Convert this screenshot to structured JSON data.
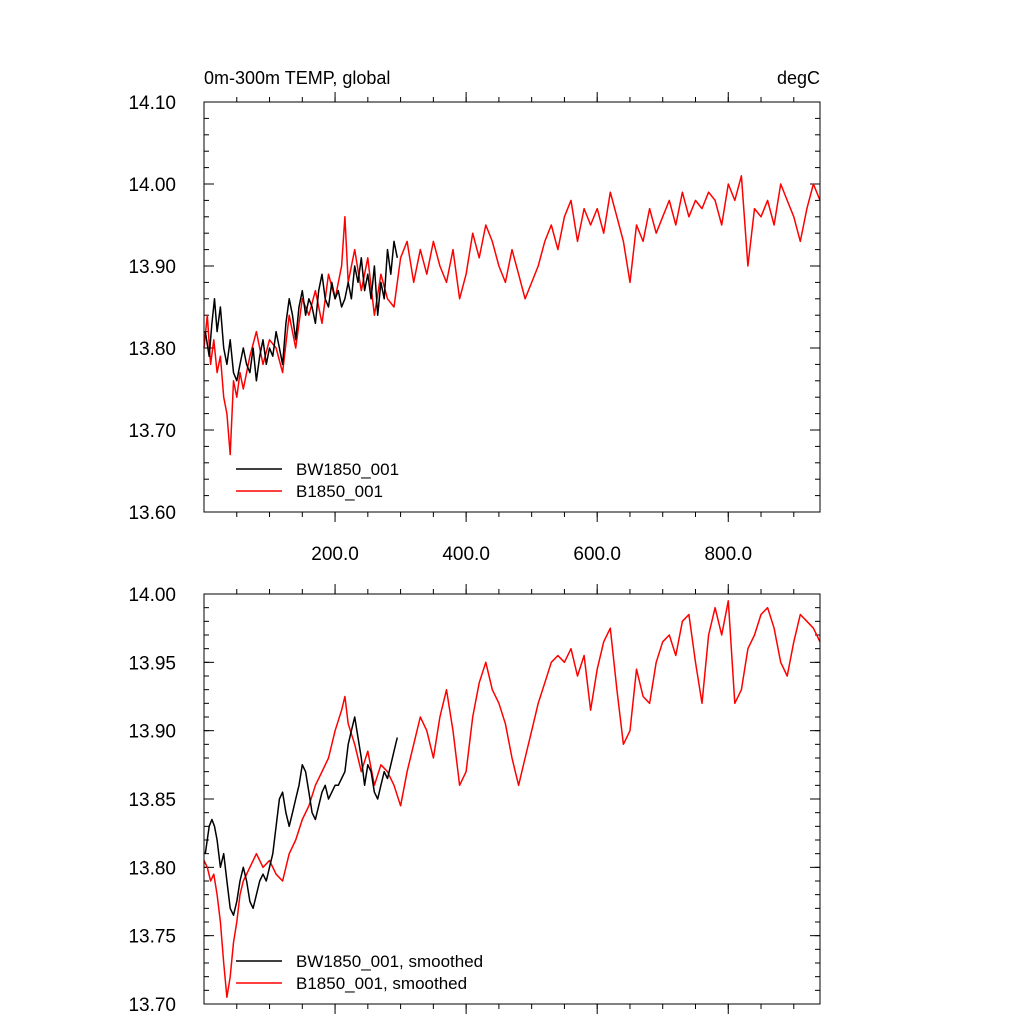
{
  "chart_data": [
    {
      "type": "line",
      "title_left": "0m-300m TEMP, global",
      "title_right": "degC",
      "xlim": [
        0,
        940
      ],
      "ylim": [
        13.6,
        14.1
      ],
      "x_ticks": [
        200,
        400,
        600,
        800
      ],
      "x_tick_labels": [
        "200.0",
        "400.0",
        "600.0",
        "800.0"
      ],
      "y_ticks": [
        13.6,
        13.7,
        13.8,
        13.9,
        14.0,
        14.1
      ],
      "y_tick_labels": [
        "13.60",
        "13.70",
        "13.80",
        "13.90",
        "14.00",
        "14.10"
      ],
      "legend_position": "bottom-left",
      "series": [
        {
          "name": "BW1850_001",
          "color": "#000000",
          "x": [
            2,
            8,
            12,
            16,
            20,
            25,
            30,
            35,
            40,
            45,
            50,
            55,
            60,
            65,
            70,
            75,
            80,
            85,
            90,
            95,
            100,
            105,
            110,
            115,
            120,
            125,
            130,
            135,
            140,
            145,
            150,
            155,
            160,
            165,
            170,
            175,
            180,
            185,
            190,
            195,
            200,
            205,
            210,
            215,
            220,
            225,
            230,
            235,
            240,
            245,
            250,
            255,
            260,
            265,
            270,
            275,
            280,
            285,
            290,
            295
          ],
          "y": [
            13.82,
            13.79,
            13.83,
            13.86,
            13.82,
            13.85,
            13.8,
            13.78,
            13.81,
            13.77,
            13.76,
            13.78,
            13.8,
            13.78,
            13.77,
            13.8,
            13.76,
            13.79,
            13.81,
            13.78,
            13.8,
            13.79,
            13.82,
            13.8,
            13.78,
            13.83,
            13.86,
            13.84,
            13.81,
            13.85,
            13.87,
            13.84,
            13.86,
            13.85,
            13.83,
            13.87,
            13.89,
            13.86,
            13.85,
            13.88,
            13.86,
            13.87,
            13.85,
            13.86,
            13.88,
            13.86,
            13.9,
            13.88,
            13.91,
            13.87,
            13.89,
            13.86,
            13.9,
            13.84,
            13.88,
            13.86,
            13.92,
            13.89,
            13.93,
            13.91
          ]
        },
        {
          "name": "B1850_001",
          "color": "#ff0000",
          "x": [
            0,
            5,
            10,
            15,
            20,
            25,
            30,
            35,
            40,
            45,
            50,
            55,
            60,
            70,
            80,
            90,
            100,
            110,
            120,
            130,
            140,
            150,
            160,
            170,
            180,
            190,
            200,
            210,
            215,
            220,
            230,
            240,
            250,
            260,
            270,
            280,
            290,
            300,
            310,
            320,
            330,
            340,
            350,
            360,
            370,
            380,
            390,
            400,
            410,
            420,
            430,
            440,
            450,
            460,
            470,
            480,
            490,
            500,
            510,
            520,
            530,
            540,
            550,
            560,
            570,
            580,
            590,
            600,
            610,
            620,
            630,
            640,
            650,
            660,
            670,
            680,
            690,
            700,
            710,
            720,
            730,
            740,
            750,
            760,
            770,
            780,
            790,
            800,
            810,
            820,
            830,
            840,
            850,
            860,
            870,
            880,
            890,
            900,
            910,
            920,
            930,
            940
          ],
          "y": [
            13.8,
            13.84,
            13.78,
            13.81,
            13.77,
            13.79,
            13.74,
            13.72,
            13.67,
            13.76,
            13.74,
            13.77,
            13.75,
            13.79,
            13.82,
            13.78,
            13.81,
            13.8,
            13.77,
            13.84,
            13.8,
            13.86,
            13.84,
            13.87,
            13.83,
            13.89,
            13.86,
            13.9,
            13.96,
            13.88,
            13.92,
            13.87,
            13.91,
            13.84,
            13.89,
            13.86,
            13.85,
            13.91,
            13.93,
            13.88,
            13.92,
            13.89,
            13.93,
            13.9,
            13.88,
            13.92,
            13.86,
            13.89,
            13.94,
            13.91,
            13.95,
            13.93,
            13.9,
            13.88,
            13.92,
            13.89,
            13.86,
            13.88,
            13.9,
            13.93,
            13.95,
            13.92,
            13.96,
            13.98,
            13.93,
            13.97,
            13.95,
            13.97,
            13.94,
            13.99,
            13.96,
            13.93,
            13.88,
            13.95,
            13.93,
            13.97,
            13.94,
            13.96,
            13.98,
            13.95,
            13.99,
            13.96,
            13.98,
            13.97,
            13.99,
            13.98,
            13.95,
            14.0,
            13.98,
            14.01,
            13.9,
            13.97,
            13.96,
            13.98,
            13.95,
            14.0,
            13.98,
            13.96,
            13.93,
            13.97,
            14.0,
            13.98
          ]
        }
      ]
    },
    {
      "type": "line",
      "xlim": [
        0,
        940
      ],
      "ylim": [
        13.7,
        14.0
      ],
      "x_ticks": [
        200,
        400,
        600,
        800
      ],
      "y_ticks": [
        13.7,
        13.75,
        13.8,
        13.85,
        13.9,
        13.95,
        14.0
      ],
      "y_tick_labels": [
        "13.70",
        "13.75",
        "13.80",
        "13.85",
        "13.90",
        "13.95",
        "14.00"
      ],
      "legend_position": "bottom-left",
      "series": [
        {
          "name": "BW1850_001, smoothed",
          "color": "#000000",
          "x": [
            2,
            8,
            12,
            16,
            20,
            25,
            30,
            35,
            40,
            45,
            50,
            55,
            60,
            65,
            70,
            75,
            80,
            85,
            90,
            95,
            100,
            105,
            110,
            115,
            120,
            125,
            130,
            135,
            140,
            145,
            150,
            155,
            160,
            165,
            170,
            175,
            180,
            185,
            190,
            195,
            200,
            205,
            210,
            215,
            220,
            225,
            230,
            235,
            240,
            245,
            250,
            255,
            260,
            265,
            270,
            275,
            280,
            285,
            290,
            295
          ],
          "y": [
            13.81,
            13.83,
            13.835,
            13.83,
            13.82,
            13.8,
            13.81,
            13.79,
            13.77,
            13.765,
            13.775,
            13.79,
            13.8,
            13.79,
            13.775,
            13.77,
            13.78,
            13.79,
            13.795,
            13.79,
            13.8,
            13.81,
            13.83,
            13.85,
            13.855,
            13.84,
            13.83,
            13.84,
            13.85,
            13.86,
            13.875,
            13.87,
            13.855,
            13.84,
            13.835,
            13.845,
            13.855,
            13.86,
            13.85,
            13.855,
            13.86,
            13.86,
            13.865,
            13.87,
            13.89,
            13.9,
            13.91,
            13.895,
            13.88,
            13.86,
            13.875,
            13.87,
            13.855,
            13.85,
            13.86,
            13.87,
            13.865,
            13.875,
            13.885,
            13.895
          ]
        },
        {
          "name": "B1850_001, smoothed",
          "color": "#ff0000",
          "x": [
            0,
            5,
            10,
            15,
            20,
            25,
            30,
            35,
            40,
            45,
            50,
            55,
            60,
            70,
            80,
            90,
            100,
            110,
            120,
            130,
            140,
            150,
            160,
            170,
            180,
            190,
            200,
            210,
            215,
            220,
            230,
            240,
            250,
            260,
            270,
            280,
            290,
            300,
            310,
            320,
            330,
            340,
            350,
            360,
            370,
            380,
            390,
            400,
            410,
            420,
            430,
            440,
            450,
            460,
            470,
            480,
            490,
            500,
            510,
            520,
            530,
            540,
            550,
            560,
            570,
            580,
            590,
            600,
            610,
            620,
            630,
            640,
            650,
            660,
            670,
            680,
            690,
            700,
            710,
            720,
            730,
            740,
            750,
            760,
            770,
            780,
            790,
            800,
            810,
            820,
            830,
            840,
            850,
            860,
            870,
            880,
            890,
            900,
            910,
            920,
            930,
            940
          ],
          "y": [
            13.805,
            13.8,
            13.79,
            13.795,
            13.78,
            13.76,
            13.73,
            13.705,
            13.72,
            13.745,
            13.76,
            13.78,
            13.79,
            13.8,
            13.81,
            13.8,
            13.805,
            13.795,
            13.79,
            13.81,
            13.82,
            13.835,
            13.845,
            13.86,
            13.87,
            13.88,
            13.9,
            13.915,
            13.925,
            13.905,
            13.89,
            13.87,
            13.885,
            13.86,
            13.875,
            13.87,
            13.86,
            13.845,
            13.87,
            13.89,
            13.91,
            13.9,
            13.88,
            13.91,
            13.93,
            13.9,
            13.86,
            13.87,
            13.91,
            13.935,
            13.95,
            13.93,
            13.92,
            13.905,
            13.88,
            13.86,
            13.88,
            13.9,
            13.92,
            13.935,
            13.95,
            13.955,
            13.95,
            13.96,
            13.94,
            13.955,
            13.915,
            13.945,
            13.965,
            13.975,
            13.93,
            13.89,
            13.9,
            13.945,
            13.925,
            13.92,
            13.95,
            13.965,
            13.97,
            13.955,
            13.98,
            13.985,
            13.95,
            13.92,
            13.97,
            13.99,
            13.97,
            13.995,
            13.92,
            13.93,
            13.96,
            13.97,
            13.985,
            13.99,
            13.975,
            13.95,
            13.94,
            13.965,
            13.985,
            13.98,
            13.975,
            13.965
          ]
        }
      ]
    }
  ]
}
